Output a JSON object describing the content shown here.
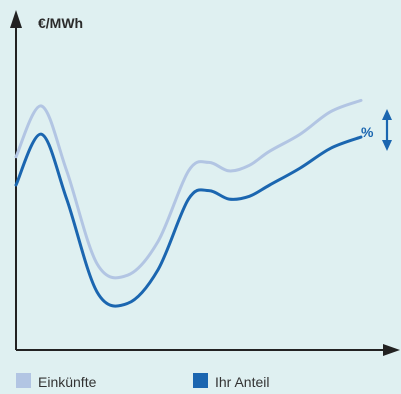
{
  "chart_data": {
    "type": "line",
    "ylabel": "€/MWh",
    "difference_label": "%",
    "ticks_shown": false,
    "grid": false,
    "legend_position": "bottom",
    "x": [
      0,
      2.5,
      5,
      8,
      11,
      14,
      17,
      19,
      21,
      23,
      25,
      28,
      31,
      34
    ],
    "series": [
      {
        "name": "Einkünfte",
        "color": "#b2c5e3",
        "values": [
          60,
          78,
          55,
          22,
          18,
          30,
          55,
          58,
          55,
          57,
          62,
          68,
          76,
          80
        ]
      },
      {
        "name": "Ihr Anteil",
        "color": "#1b66b0",
        "values": [
          50,
          68,
          45,
          12,
          8,
          20,
          45,
          48,
          45,
          46,
          50,
          56,
          63,
          67
        ]
      }
    ],
    "xlim": [
      0,
      34
    ],
    "ylim": [
      0,
      100
    ]
  },
  "colors": {
    "background": "#dff0f1",
    "axis": "#222222",
    "accent": "#1b66b0"
  }
}
